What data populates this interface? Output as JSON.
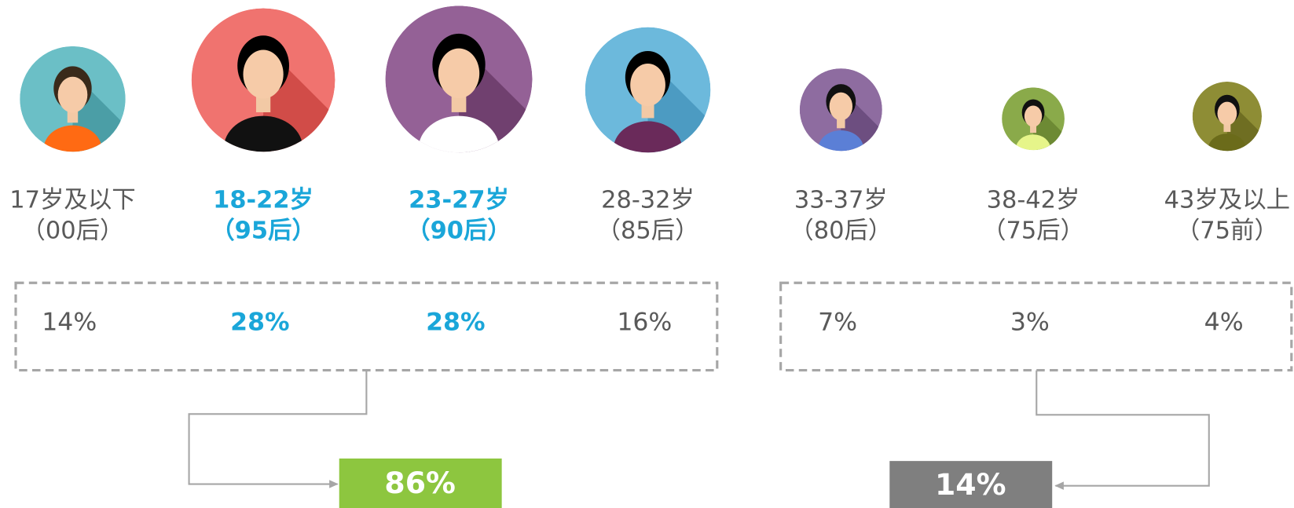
{
  "groups": [
    {
      "age": "17岁及以下",
      "gen": "（00后）",
      "percent": "14%"
    },
    {
      "age": "18-22岁",
      "gen": "（95后）",
      "percent": "28%"
    },
    {
      "age": "23-27岁",
      "gen": "（90后）",
      "percent": "28%"
    },
    {
      "age": "28-32岁",
      "gen": "（85后）",
      "percent": "16%"
    },
    {
      "age": "33-37岁",
      "gen": "（80后）",
      "percent": "7%"
    },
    {
      "age": "38-42岁",
      "gen": "（75后）",
      "percent": "3%"
    },
    {
      "age": "43岁及以上",
      "gen": "（75前）",
      "percent": "4%"
    }
  ],
  "totals": [
    "86%",
    "14%"
  ]
}
